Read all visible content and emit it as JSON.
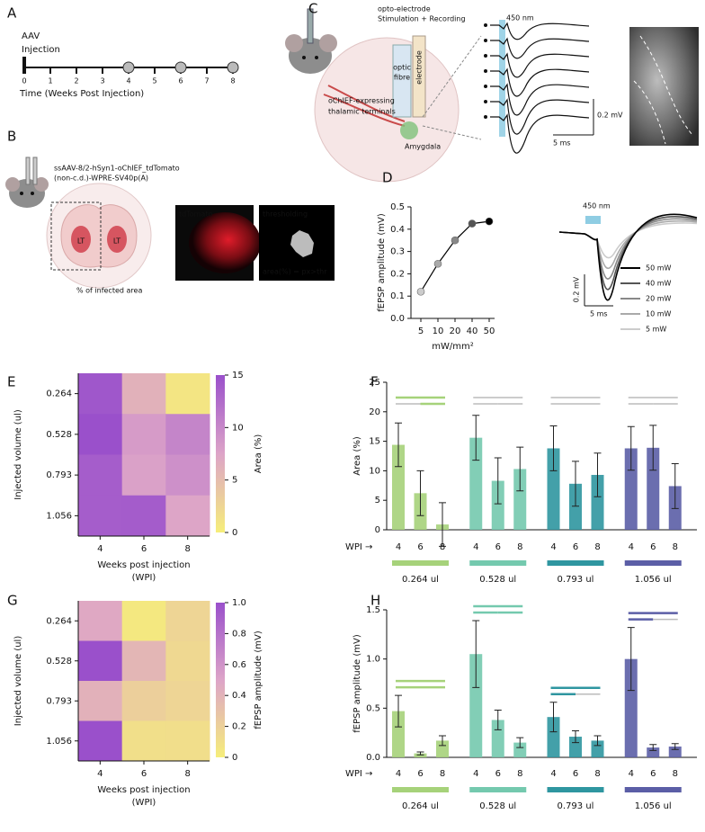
{
  "panel_labels": [
    "A",
    "B",
    "C",
    "D",
    "E",
    "F",
    "G",
    "H"
  ],
  "panel_a": {
    "title": "AAV",
    "subtitle": "Injection",
    "weeks": [
      0,
      1,
      2,
      3,
      4,
      5,
      6,
      7,
      8
    ],
    "timepoints": [
      4,
      6,
      8
    ],
    "xlabel": "Time (Weeks Post Injection)"
  },
  "panel_b": {
    "virus": "ssAAV-8/2-hSyn1-oChIEF_tdTomato",
    "virus2": "(non-c.d.)-WPRE-SV40p(A)",
    "regions": [
      "LT",
      "LT"
    ],
    "caption": "% of infected area",
    "image1": "tdTomato",
    "image2": "thresholding",
    "formula": "area(%) = px>thr"
  },
  "panel_c": {
    "device": "opto-electrode",
    "device2": "Stimulation + Recording",
    "fibre": "optic",
    "fibre2": "fibre",
    "electrode": "electrode",
    "terminals": "oChIEF-expressing",
    "terminals2": "thalamic terminals",
    "region": "Amygdala",
    "stim": "450 nm",
    "scale_v": "0.2 mV",
    "scale_t": "5 ms"
  },
  "panel_d_traces": {
    "stim": "450 nm",
    "scale_v": "0.2 mV",
    "scale_t": "5 ms",
    "legend": [
      {
        "name": "50 mW",
        "color": "#000000"
      },
      {
        "name": "40 mW",
        "color": "#555555"
      },
      {
        "name": "20 mW",
        "color": "#888888"
      },
      {
        "name": "10 mW",
        "color": "#aaaaaa"
      },
      {
        "name": "5 mW",
        "color": "#cccccc"
      }
    ]
  },
  "chart_data": [
    {
      "type": "line",
      "ylabel": "fEPSP amplitude (mV)",
      "xlabel": "mW/mm²",
      "categories": [
        "5",
        "10",
        "20",
        "40",
        "50"
      ],
      "values": [
        0.12,
        0.245,
        0.35,
        0.425,
        0.435
      ],
      "color": "#000000",
      "point_colors": [
        "#cccccc",
        "#aaaaaa",
        "#888888",
        "#555555",
        "#000000"
      ],
      "ylim": [
        0,
        0.5
      ],
      "yticks": [
        {
          "value": 0,
          "label": "0.0"
        },
        0.1,
        0.2,
        0.3,
        0.4,
        0.5
      ]
    },
    {
      "type": "heatmap",
      "ylabel": "Injected volume (ul)",
      "xlabel": [
        "Weeks post injection",
        "(WPI)"
      ],
      "categories": [
        "4",
        "6",
        "8"
      ],
      "rows": [
        "0.264",
        "0.528",
        "0.793",
        "1.056"
      ],
      "values": [
        [
          14.4,
          6.2,
          0.9
        ],
        [
          15.6,
          8.3,
          10.3
        ],
        [
          13.8,
          7.8,
          9.3
        ],
        [
          13.8,
          13.9,
          7.4
        ]
      ],
      "colorbar_label": "Area (%)",
      "clim": [
        0,
        15
      ],
      "cticks": [
        0,
        5,
        10,
        15
      ],
      "colors": [
        "#f6ee7a",
        "#dda4c8",
        "#9a50cb"
      ]
    },
    {
      "type": "bar",
      "ylabel": "Area (%)",
      "x_label": "WPI →",
      "categories": [
        "4",
        "6",
        "8"
      ],
      "series": [
        {
          "name": "0.264 ul",
          "color": "#a6d27a",
          "values": [
            14.4,
            6.2,
            0.9
          ],
          "errors": [
            3.7,
            3.8,
            3.7
          ]
        },
        {
          "name": "0.528 ul",
          "color": "#74c9ae",
          "values": [
            15.6,
            8.3,
            10.3
          ],
          "errors": [
            3.8,
            3.9,
            3.7
          ]
        },
        {
          "name": "0.793 ul",
          "color": "#2f96a0",
          "values": [
            13.8,
            7.8,
            9.3
          ],
          "errors": [
            3.8,
            3.8,
            3.7
          ]
        },
        {
          "name": "1.056 ul",
          "color": "#5b5ea6",
          "values": [
            13.8,
            13.9,
            7.4
          ],
          "errors": [
            3.7,
            3.8,
            3.8
          ]
        }
      ],
      "ylim": [
        0,
        25
      ],
      "yticks": [
        0,
        5,
        10,
        15,
        20,
        25
      ]
    },
    {
      "type": "heatmap",
      "ylabel": "Injected volume (ul)",
      "xlabel": [
        "Weeks post injection",
        "(WPI)"
      ],
      "categories": [
        "4",
        "6",
        "8"
      ],
      "rows": [
        "0.264",
        "0.528",
        "0.793",
        "1.056"
      ],
      "values": [
        [
          0.47,
          0.04,
          0.17
        ],
        [
          1.05,
          0.38,
          0.15
        ],
        [
          0.41,
          0.21,
          0.17
        ],
        [
          1.0,
          0.1,
          0.11
        ]
      ],
      "colorbar_label": "fEPSP amplitude (mV)",
      "clim": [
        0,
        1
      ],
      "cticks": [
        0,
        0.2,
        0.4,
        0.6,
        0.8,
        {
          "value": 1,
          "label": "1.0"
        }
      ],
      "colors": [
        "#f6ee7a",
        "#dda4c8",
        "#9a50cb"
      ]
    },
    {
      "type": "bar",
      "ylabel": "fEPSP amplitude (mV)",
      "x_label": "WPI →",
      "categories": [
        "4",
        "6",
        "8"
      ],
      "series": [
        {
          "name": "0.264 ul",
          "color": "#a6d27a",
          "values": [
            0.47,
            0.04,
            0.17
          ],
          "errors": [
            0.16,
            0.015,
            0.05
          ]
        },
        {
          "name": "0.528 ul",
          "color": "#74c9ae",
          "values": [
            1.05,
            0.38,
            0.15
          ],
          "errors": [
            0.34,
            0.1,
            0.05
          ]
        },
        {
          "name": "0.793 ul",
          "color": "#2f96a0",
          "values": [
            0.41,
            0.21,
            0.17
          ],
          "errors": [
            0.15,
            0.06,
            0.05
          ]
        },
        {
          "name": "1.056 ul",
          "color": "#5b5ea6",
          "values": [
            1.0,
            0.1,
            0.11
          ],
          "errors": [
            0.32,
            0.03,
            0.03
          ]
        }
      ],
      "ylim": [
        0,
        1.5
      ],
      "yticks": [
        {
          "value": 0,
          "label": "0.0"
        },
        0.5,
        {
          "value": 1,
          "label": "1.0"
        },
        1.5
      ]
    }
  ]
}
